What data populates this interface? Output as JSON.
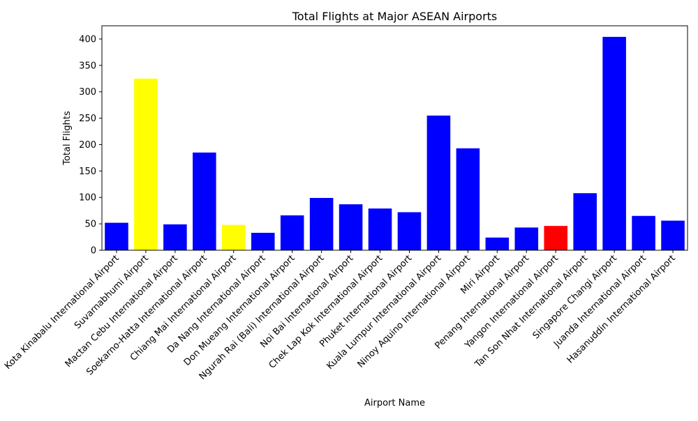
{
  "chart_data": {
    "type": "bar",
    "title": "Total Flights at Major ASEAN Airports",
    "xlabel": "Airport Name",
    "ylabel": "Total Flights",
    "ylim": [
      0,
      425
    ],
    "yticks": [
      0,
      50,
      100,
      150,
      200,
      250,
      300,
      350,
      400
    ],
    "grid": false,
    "categories": [
      "Kota Kinabalu International Airport",
      "Suvarnabhumi Airport",
      "Mactan Cebu International Airport",
      "Soekarno-Hatta International Airport",
      "Chiang Mai International Airport",
      "Da Nang International Airport",
      "Don Mueang International Airport",
      "Ngurah Rai (Bali) International Airport",
      "Noi Bai International Airport",
      "Chek Lap Kok International Airport",
      "Phuket International Airport",
      "Kuala Lumpur International Airport",
      "Ninoy Aquino International Airport",
      "Miri Airport",
      "Penang International Airport",
      "Yangon International Airport",
      "Tan Son Nhat International Airport",
      "Singapore Changi Airport",
      "Juanda International Airport",
      "Hasanuddin International Airport"
    ],
    "values": [
      52,
      325,
      49,
      185,
      48,
      33,
      66,
      99,
      87,
      79,
      72,
      255,
      193,
      24,
      43,
      46,
      108,
      404,
      65,
      56
    ],
    "bar_colors": [
      "#0000ff",
      "#ffff00",
      "#0000ff",
      "#0000ff",
      "#ffff00",
      "#0000ff",
      "#0000ff",
      "#0000ff",
      "#0000ff",
      "#0000ff",
      "#0000ff",
      "#0000ff",
      "#0000ff",
      "#0000ff",
      "#0000ff",
      "#ff0000",
      "#0000ff",
      "#0000ff",
      "#0000ff",
      "#0000ff"
    ]
  }
}
